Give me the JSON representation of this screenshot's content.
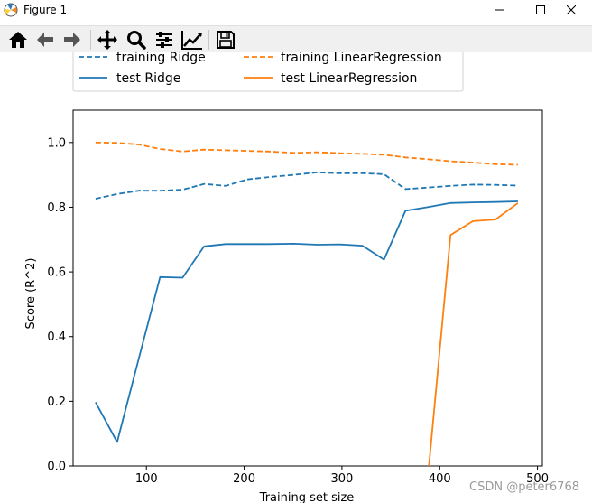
{
  "window": {
    "title": "Figure 1",
    "controls": [
      "minimize",
      "maximize",
      "close"
    ]
  },
  "toolbar": {
    "buttons": [
      {
        "icon": "home-icon",
        "action": "Home"
      },
      {
        "icon": "back-arrow-icon",
        "action": "Back"
      },
      {
        "icon": "forward-arrow-icon",
        "action": "Forward"
      },
      {
        "icon": "pan-icon",
        "action": "Pan"
      },
      {
        "icon": "zoom-icon",
        "action": "Zoom"
      },
      {
        "icon": "subplots-icon",
        "action": "Configure subplots"
      },
      {
        "icon": "edit-lines-icon",
        "action": "Edit axis"
      },
      {
        "icon": "save-icon",
        "action": "Save"
      }
    ]
  },
  "watermark": "CSDN @peter6768",
  "colors": {
    "ridge": "#1f77b4",
    "linear": "#ff7f0e"
  },
  "chart_data": {
    "type": "line",
    "xlabel": "Training set size",
    "ylabel": "Score (R^2)",
    "xlim": [
      25,
      505
    ],
    "ylim": [
      0,
      1.1
    ],
    "xticks": [
      100,
      200,
      300,
      400,
      500
    ],
    "yticks": [
      0.0,
      0.2,
      0.4,
      0.6,
      0.8,
      1.0
    ],
    "xtick_labels": [
      "100",
      "200",
      "300",
      "400",
      "500"
    ],
    "ytick_labels": [
      "0.0",
      "0.2",
      "0.4",
      "0.6",
      "0.8",
      "1.0"
    ],
    "legend": {
      "placement": "upper center, above axes",
      "ncol": 2
    },
    "series": [
      {
        "name": "training Ridge",
        "color": "#1f77b4",
        "style": "dashed",
        "x": [
          48,
          70,
          92,
          114,
          137,
          159,
          181,
          203,
          225,
          251,
          275,
          297,
          321,
          343,
          365,
          389,
          411,
          434,
          457,
          480
        ],
        "y": [
          0.826,
          0.841,
          0.851,
          0.851,
          0.854,
          0.872,
          0.866,
          0.886,
          0.893,
          0.9,
          0.908,
          0.905,
          0.905,
          0.902,
          0.856,
          0.861,
          0.866,
          0.87,
          0.869,
          0.867
        ]
      },
      {
        "name": "test Ridge",
        "color": "#1f77b4",
        "style": "solid",
        "x": [
          48,
          70,
          92,
          114,
          137,
          159,
          181,
          203,
          225,
          251,
          275,
          297,
          321,
          343,
          365,
          389,
          411,
          434,
          457,
          480
        ],
        "y": [
          0.197,
          0.074,
          0.33,
          0.584,
          0.582,
          0.679,
          0.686,
          0.686,
          0.686,
          0.687,
          0.684,
          0.685,
          0.681,
          0.638,
          0.789,
          0.801,
          0.813,
          0.815,
          0.816,
          0.818
        ]
      },
      {
        "name": "training LinearRegression",
        "color": "#ff7f0e",
        "style": "dashed",
        "x": [
          48,
          70,
          92,
          114,
          137,
          159,
          181,
          203,
          225,
          251,
          275,
          297,
          321,
          343,
          365,
          389,
          411,
          434,
          457,
          480
        ],
        "y": [
          1.0,
          0.999,
          0.994,
          0.98,
          0.972,
          0.978,
          0.976,
          0.974,
          0.972,
          0.968,
          0.97,
          0.967,
          0.965,
          0.962,
          0.954,
          0.948,
          0.942,
          0.938,
          0.933,
          0.931
        ]
      },
      {
        "name": "test LinearRegression",
        "color": "#ff7f0e",
        "style": "solid",
        "x": [
          389,
          411,
          434,
          457,
          480
        ],
        "y": [
          0.0,
          0.714,
          0.757,
          0.762,
          0.813
        ]
      }
    ]
  }
}
